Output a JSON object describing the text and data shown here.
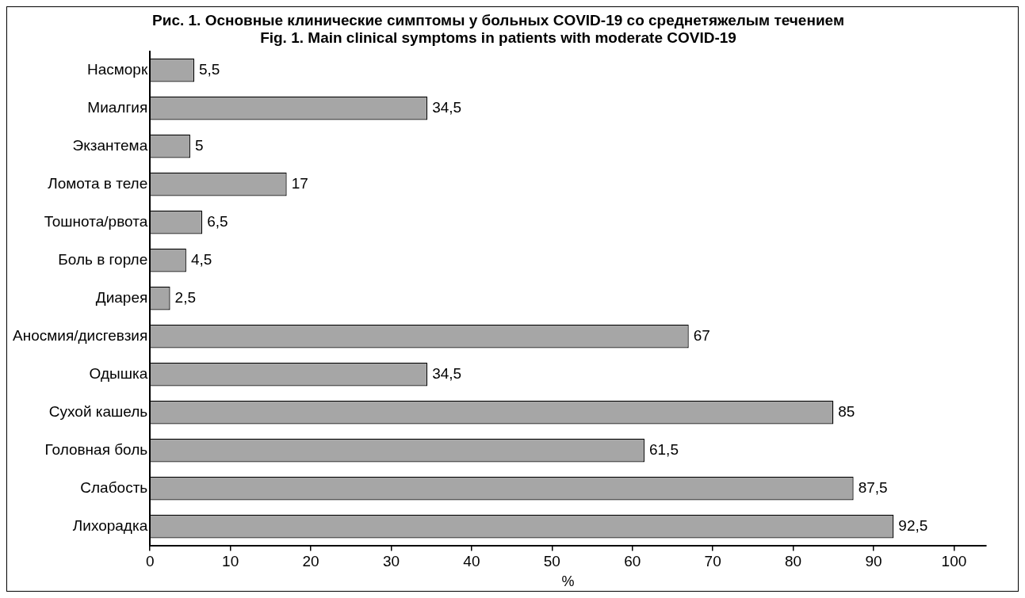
{
  "chart_data": {
    "type": "bar",
    "orientation": "horizontal",
    "title": "Рис. 1. Основные клинические симптомы у больных COVID-19 со среднетяжелым течением",
    "subtitle": "Fig. 1. Main clinical symptoms in patients with moderate COVID-19",
    "categories": [
      "Насморк",
      "Миалгия",
      "Экзантема",
      "Ломота в теле",
      "Тошнота/рвота",
      "Боль в горле",
      "Диарея",
      "Аносмия/дисгевзия",
      "Одышка",
      "Сухой кашель",
      "Головная боль",
      "Слабость",
      "Лихорадка"
    ],
    "values": [
      5.5,
      34.5,
      5,
      17,
      6.5,
      4.5,
      2.5,
      67,
      34.5,
      85,
      61.5,
      87.5,
      92.5
    ],
    "value_labels": [
      "5,5",
      "34,5",
      "5",
      "17",
      "6,5",
      "4,5",
      "2,5",
      "67",
      "34,5",
      "85",
      "61,5",
      "87,5",
      "92,5"
    ],
    "color": "#a6a6a6",
    "xlabel": "%",
    "xlim": [
      0,
      104
    ],
    "xticks": [
      0,
      10,
      20,
      30,
      40,
      50,
      60,
      70,
      80,
      90,
      100
    ],
    "grid": false,
    "legend": false
  }
}
